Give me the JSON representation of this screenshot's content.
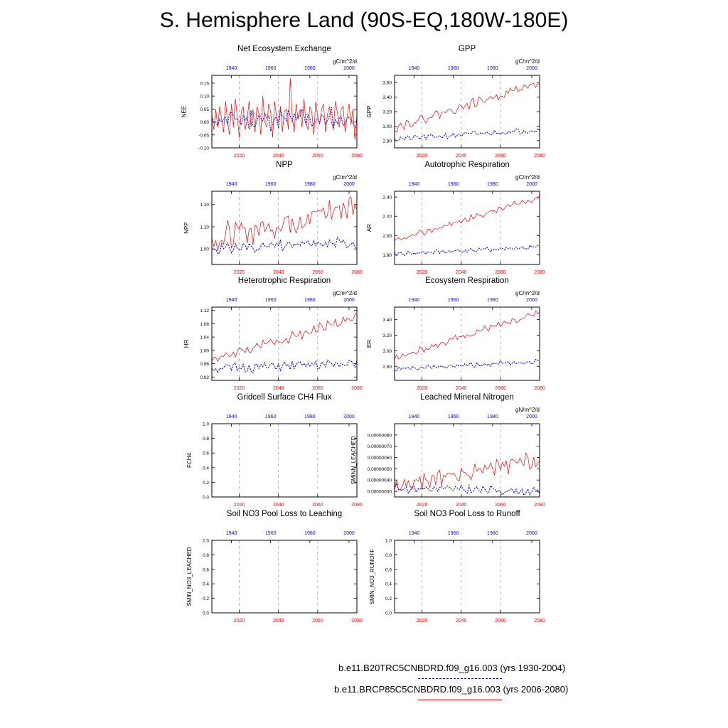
{
  "page": {
    "title": "S. Hemisphere Land (90S-EQ,180W-180E)"
  },
  "colors": {
    "control": "#0000ff",
    "future": "#ff0000",
    "axis": "#000000",
    "gridline": "#888888"
  },
  "legend": {
    "control_label": "b.e11.B20TRC5CNBDRD.f09_g16.003 (yrs 1930-2004)",
    "future_label": "b.e11.BRCP85C5CNBDRD.f09_g16.003 (yrs 2006-2080)"
  },
  "chart_data": [
    {
      "type": "line",
      "title": "Net Ecosystem Exchange",
      "ylabel": "NEE",
      "units": "gC/m^2/d",
      "ylim": [
        -0.1,
        0.18
      ],
      "yticks": [
        -0.1,
        -0.05,
        0,
        0.05,
        0.1,
        0.15
      ],
      "ytick_labels": [
        "-0.10",
        "-0.05",
        "0.00",
        "0.05",
        "0.10",
        "0.15"
      ],
      "xlim": [
        2006,
        2080
      ],
      "xticks": [
        2020,
        2040,
        2060,
        2080
      ],
      "xtick_labels": [
        "2020",
        "2040",
        "2060",
        "2080"
      ],
      "top_xticks": [
        1940,
        1960,
        1980,
        2000
      ],
      "top_xtick_labels": [
        "1940",
        "1960",
        "1980",
        "2000"
      ],
      "series": [
        {
          "name": "control",
          "start_year": 2006,
          "trend": [
            0.01,
            0.01
          ],
          "amp": 0.035,
          "seed": 11
        },
        {
          "name": "future",
          "start_year": 2006,
          "trend": [
            0.0,
            0.03
          ],
          "amp": 0.06,
          "seed": 12,
          "values": [
            0.02,
            -0.03,
            0.05,
            -0.02,
            0.06,
            0.01,
            -0.04,
            0.08,
            0.0,
            -0.05,
            0.07,
            -0.02,
            0.09,
            0.02,
            -0.06,
            0.04,
            0.06,
            -0.03,
            0.01,
            0.08,
            -0.02,
            0.05,
            -0.04,
            0.06,
            0.03,
            -0.05,
            0.1,
            0.0,
            -0.02,
            0.07,
            0.04,
            -0.06,
            0.08,
            0.02,
            0.0,
            0.06,
            -0.04,
            0.04,
            0.05,
            -0.03,
            0.17,
            0.02,
            -0.04,
            0.07,
            0.01,
            0.05,
            -0.02,
            0.09,
            0.0,
            -0.03,
            0.06,
            0.04,
            -0.05,
            0.08,
            0.02,
            -0.01,
            0.05,
            0.07,
            -0.04,
            0.03,
            0.06,
            0.0,
            -0.03,
            0.08,
            0.04,
            -0.02,
            0.05,
            0.06,
            -0.04,
            0.02,
            0.07,
            -0.01,
            0.05,
            -0.07,
            0.03
          ]
        }
      ]
    },
    {
      "type": "line",
      "title": "GPP",
      "ylabel": "GPP",
      "units": "gC/m^2/d",
      "ylim": [
        2.7,
        3.7
      ],
      "yticks": [
        2.8,
        3.0,
        3.2,
        3.4,
        3.6
      ],
      "ytick_labels": [
        "2.80",
        "3.00",
        "3.20",
        "3.40",
        "3.60"
      ],
      "xlim": [
        2006,
        2080
      ],
      "xticks": [
        2020,
        2040,
        2060,
        2080
      ],
      "xtick_labels": [
        "2020",
        "2040",
        "2060",
        "2080"
      ],
      "top_xticks": [
        1940,
        1960,
        1980,
        2000
      ],
      "top_xtick_labels": [
        "1940",
        "1960",
        "1980",
        "2000"
      ],
      "series": [
        {
          "name": "control",
          "start_year": 2006,
          "trend": [
            2.82,
            2.95
          ],
          "amp": 0.03,
          "seed": 21
        },
        {
          "name": "future",
          "start_year": 2006,
          "trend": [
            2.98,
            3.6
          ],
          "amp": 0.05,
          "seed": 22
        }
      ]
    },
    {
      "type": "line",
      "title": "NPP",
      "ylabel": "NPP",
      "units": "gC/m^2/d",
      "ylim": [
        0.93,
        1.26
      ],
      "yticks": [
        1.0,
        1.1,
        1.2
      ],
      "ytick_labels": [
        "1.00",
        "1.10",
        "1.20"
      ],
      "xlim": [
        2006,
        2080
      ],
      "xticks": [
        2020,
        2040,
        2060,
        2080
      ],
      "xtick_labels": [
        "2020",
        "2040",
        "2060",
        "2080"
      ],
      "top_xticks": [
        1940,
        1960,
        1980,
        2000
      ],
      "top_xtick_labels": [
        "1940",
        "1960",
        "1980",
        "2000"
      ],
      "series": [
        {
          "name": "control",
          "start_year": 2006,
          "trend": [
            1.0,
            1.03
          ],
          "amp": 0.02,
          "seed": 31
        },
        {
          "name": "future",
          "start_year": 2006,
          "trend": [
            1.04,
            1.2
          ],
          "amp": 0.05,
          "seed": 32
        }
      ]
    },
    {
      "type": "line",
      "title": "Autotrophic Respiration",
      "ylabel": "AR",
      "units": "gC/m^2/d",
      "ylim": [
        1.7,
        2.46
      ],
      "yticks": [
        1.8,
        2.0,
        2.2,
        2.4
      ],
      "ytick_labels": [
        "1.80",
        "2.00",
        "2.20",
        "2.40"
      ],
      "xlim": [
        2006,
        2080
      ],
      "xticks": [
        2020,
        2040,
        2060,
        2080
      ],
      "xtick_labels": [
        "2020",
        "2040",
        "2060",
        "2080"
      ],
      "top_xticks": [
        1940,
        1960,
        1980,
        2000
      ],
      "top_xtick_labels": [
        "1940",
        "1960",
        "1980",
        "2000"
      ],
      "series": [
        {
          "name": "control",
          "start_year": 2006,
          "trend": [
            1.81,
            1.88
          ],
          "amp": 0.02,
          "seed": 41
        },
        {
          "name": "future",
          "start_year": 2006,
          "trend": [
            1.94,
            2.4
          ],
          "amp": 0.025,
          "seed": 42
        }
      ]
    },
    {
      "type": "line",
      "title": "Heterotrophic Respiration",
      "ylabel": "HR",
      "units": "gC/m^2/d",
      "ylim": [
        0.91,
        1.13
      ],
      "yticks": [
        0.92,
        0.96,
        1.0,
        1.04,
        1.08,
        1.12
      ],
      "ytick_labels": [
        "0.92",
        "0.96",
        "1.00",
        "1.04",
        "1.08",
        "1.12"
      ],
      "xlim": [
        2006,
        2080
      ],
      "xticks": [
        2020,
        2040,
        2060,
        2080
      ],
      "xtick_labels": [
        "2020",
        "2040",
        "2060",
        "2080"
      ],
      "top_xticks": [
        1940,
        1960,
        1980,
        2000
      ],
      "top_xtick_labels": [
        "1940",
        "1960",
        "1980",
        "2000"
      ],
      "series": [
        {
          "name": "control",
          "start_year": 2006,
          "trend": [
            0.945,
            0.96
          ],
          "amp": 0.012,
          "seed": 51
        },
        {
          "name": "future",
          "start_year": 2006,
          "trend": [
            0.97,
            1.1
          ],
          "amp": 0.012,
          "seed": 52
        }
      ]
    },
    {
      "type": "line",
      "title": "Ecosystem Respiration",
      "ylabel": "ER",
      "units": "gC/m^2/d",
      "ylim": [
        2.62,
        3.56
      ],
      "yticks": [
        2.8,
        3.0,
        3.2,
        3.4
      ],
      "ytick_labels": [
        "2.80",
        "3.00",
        "3.20",
        "3.40"
      ],
      "xlim": [
        2006,
        2080
      ],
      "xticks": [
        2020,
        2040,
        2060,
        2080
      ],
      "xtick_labels": [
        "2020",
        "2040",
        "2060",
        "2080"
      ],
      "top_xticks": [
        1940,
        1960,
        1980,
        2000
      ],
      "top_xtick_labels": [
        "1940",
        "1960",
        "1980",
        "2000"
      ],
      "series": [
        {
          "name": "control",
          "start_year": 2006,
          "trend": [
            2.76,
            2.86
          ],
          "amp": 0.025,
          "seed": 61
        },
        {
          "name": "future",
          "start_year": 2006,
          "trend": [
            2.9,
            3.5
          ],
          "amp": 0.035,
          "seed": 62
        }
      ]
    },
    {
      "type": "line",
      "title": "Gridcell Surface CH4 Flux",
      "ylabel": "FCH4",
      "units": "",
      "ylim": [
        0,
        1
      ],
      "yticks": [
        0,
        0.2,
        0.4,
        0.6,
        0.8,
        1.0
      ],
      "ytick_labels": [
        "0.0",
        "0.2",
        "0.4",
        "0.6",
        "0.8",
        "1.0"
      ],
      "xlim": [
        2006,
        2080
      ],
      "xticks": [
        2020,
        2040,
        2060,
        2080
      ],
      "xtick_labels": [
        "2020",
        "2040",
        "2060",
        "2080"
      ],
      "top_xticks": [
        1940,
        1960,
        1980,
        2000
      ],
      "top_xtick_labels": [
        "1940",
        "1960",
        "1980",
        "2000"
      ],
      "series": []
    },
    {
      "type": "line",
      "title": "Leached Mineral Nitrogen",
      "ylabel": "SMINN_LEACHED",
      "units": "gN/m^2/d",
      "ylim": [
        2.5e-07,
        9e-07
      ],
      "yticks": [
        3e-07,
        4e-07,
        5e-07,
        6e-07,
        7e-07,
        8e-07
      ],
      "ytick_labels": [
        "0.00000030",
        "0.00000040",
        "0.00000050",
        "0.00000060",
        "0.00000070",
        "0.00000080"
      ],
      "xlim": [
        2006,
        2080
      ],
      "xticks": [
        2020,
        2040,
        2060,
        2080
      ],
      "xtick_labels": [
        "2020",
        "2040",
        "2060",
        "2080"
      ],
      "top_xticks": [
        1940,
        1960,
        1980,
        2000
      ],
      "top_xtick_labels": [
        "1940",
        "1960",
        "1980",
        "2000"
      ],
      "series": [
        {
          "name": "control",
          "start_year": 2006,
          "trend": [
            3.3e-07,
            3e-07
          ],
          "amp": 3e-08,
          "seed": 81
        },
        {
          "name": "future",
          "start_year": 2006,
          "trend": [
            3.4e-07,
            5.8e-07
          ],
          "amp": 6e-08,
          "seed": 82
        }
      ]
    },
    {
      "type": "line",
      "title": "Soil NO3 Pool Loss to Leaching",
      "ylabel": "SMIN_NO3_LEACHED",
      "units": "",
      "ylim": [
        0,
        1
      ],
      "yticks": [
        0,
        0.2,
        0.4,
        0.6,
        0.8,
        1.0
      ],
      "ytick_labels": [
        "0.0",
        "0.2",
        "0.4",
        "0.6",
        "0.8",
        "1.0"
      ],
      "xlim": [
        2006,
        2080
      ],
      "xticks": [
        2020,
        2040,
        2060,
        2080
      ],
      "xtick_labels": [
        "2020",
        "2040",
        "2060",
        "2080"
      ],
      "top_xticks": [
        1940,
        1960,
        1980,
        2000
      ],
      "top_xtick_labels": [
        "1940",
        "1960",
        "1980",
        "2000"
      ],
      "series": []
    },
    {
      "type": "line",
      "title": "Soil NO3 Pool Loss to Runoff",
      "ylabel": "SMIN_NO3_RUNOFF",
      "units": "",
      "ylim": [
        0,
        1
      ],
      "yticks": [
        0,
        0.2,
        0.4,
        0.6,
        0.8,
        1.0
      ],
      "ytick_labels": [
        "0.0",
        "0.2",
        "0.4",
        "0.6",
        "0.8",
        "1.0"
      ],
      "xlim": [
        2006,
        2080
      ],
      "xticks": [
        2020,
        2040,
        2060,
        2080
      ],
      "xtick_labels": [
        "2020",
        "2040",
        "2060",
        "2080"
      ],
      "top_xticks": [
        1940,
        1960,
        1980,
        2000
      ],
      "top_xtick_labels": [
        "1940",
        "1960",
        "1980",
        "2000"
      ],
      "series": []
    }
  ]
}
